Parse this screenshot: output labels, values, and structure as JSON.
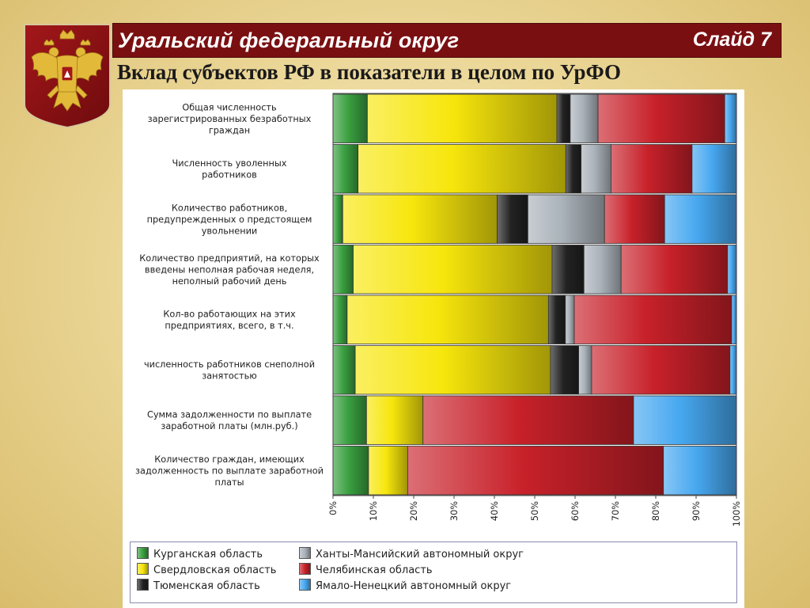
{
  "header": {
    "region": "Уральский федеральный округ",
    "slide": "Слайд 7"
  },
  "subtitle": "Вклад субъектов РФ в показатели в целом по УрФО",
  "chart_data": {
    "type": "bar",
    "orientation": "horizontal",
    "stacked": "100%",
    "categories": [
      "Общая численность зарегистрированных безработных граждан",
      "Численность уволенных работников",
      "Количество работников, предупрежденных о предстоящем увольнении",
      "Количество предприятий, на которых введены неполная рабочая неделя, неполный рабочий день",
      "Кол-во работающих на этих предприятиях, всего, в т.ч.",
      "численность работников снеполной занятостью",
      "Сумма задолженности по выплате заработной платы (млн.руб.)",
      "Количество граждан, имеющих задолженность по выплате заработной платы"
    ],
    "category_lines": [
      [
        "Общая численность",
        "зарегистрированных безработных",
        "граждан"
      ],
      [
        "Численность уволенных",
        "работников"
      ],
      [
        "Количество работников,",
        "предупрежденных о предстоящем",
        "увольнении"
      ],
      [
        "Количество предприятий, на которых",
        "введены неполная рабочая неделя,",
        "неполный рабочий день"
      ],
      [
        "Кол-во работающих на этих",
        "предприятиях, всего, в т.ч."
      ],
      [
        "численность работников снеполной",
        "занятостью"
      ],
      [
        "Сумма задолженности по выплате",
        "заработной платы (млн.руб.)"
      ],
      [
        "Количество граждан, имеющих",
        "задолженность по выплате заработной",
        "платы"
      ]
    ],
    "series": [
      {
        "name": "Курганская область",
        "color": "#3aa040",
        "values": [
          8.5,
          6.2,
          2.4,
          5.0,
          3.5,
          5.5,
          8.3,
          8.8
        ]
      },
      {
        "name": "Свердловская область",
        "color": "#f7e60c",
        "values": [
          47.0,
          51.5,
          38.3,
          49.3,
          49.9,
          48.4,
          14.0,
          9.7
        ]
      },
      {
        "name": "Тюменская область",
        "color": "#222222",
        "values": [
          3.3,
          3.8,
          7.6,
          7.9,
          4.2,
          7.0,
          0,
          0
        ]
      },
      {
        "name": "Ханты-Мансийский автономный округ",
        "color": "#aab2ba",
        "values": [
          6.9,
          7.4,
          19.0,
          9.2,
          2.2,
          3.2,
          0,
          0
        ]
      },
      {
        "name": "Челябинская область",
        "color": "#c8212a",
        "values": [
          31.4,
          20.1,
          14.9,
          26.4,
          39.0,
          34.3,
          52.2,
          63.4
        ]
      },
      {
        "name": "Ямало-Ненецкий автономный округ",
        "color": "#47a8f0",
        "values": [
          2.9,
          11.0,
          17.8,
          2.2,
          1.2,
          1.6,
          25.5,
          18.1
        ]
      }
    ],
    "xlim": [
      0,
      100
    ],
    "xticks": [
      "0%",
      "10%",
      "20%",
      "30%",
      "40%",
      "50%",
      "60%",
      "70%",
      "80%",
      "90%",
      "100%"
    ],
    "grid": false,
    "legend_position": "bottom"
  }
}
